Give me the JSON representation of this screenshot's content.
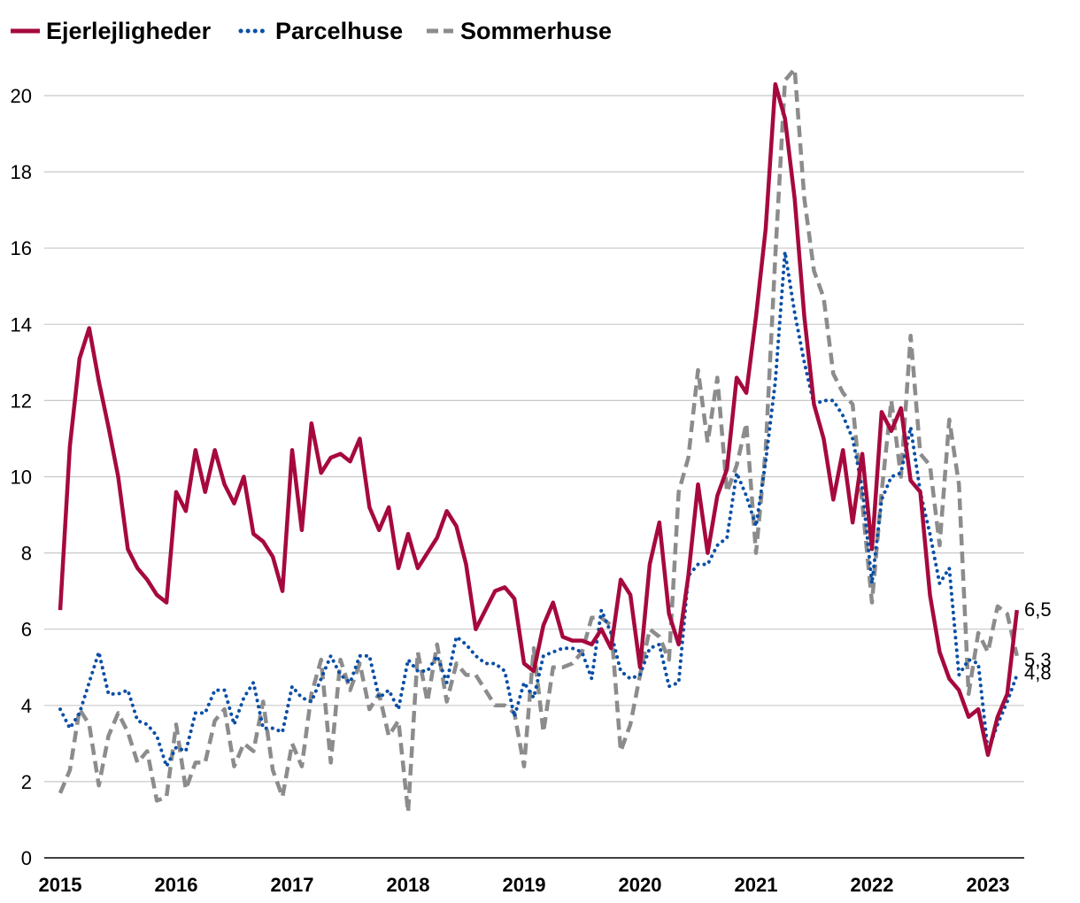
{
  "chart_data": {
    "type": "line",
    "title": "",
    "xlabel": "",
    "ylabel": "",
    "ylim": [
      0,
      20
    ],
    "yticks": [
      "0",
      "2",
      "4",
      "6",
      "8",
      "10",
      "12",
      "14",
      "16",
      "18",
      "20"
    ],
    "xticks": [
      "2015",
      "2016",
      "2017",
      "2018",
      "2019",
      "2020",
      "2021",
      "2022",
      "2023"
    ],
    "x_start": 2015,
    "months": 99,
    "legend": [
      "Ejerlejligheder",
      "Parcelhuse",
      "Sommerhuse"
    ],
    "grid": true,
    "series": [
      {
        "name": "Ejerlejligheder",
        "color": "#a6093d",
        "style": "solid",
        "end_label": "6,5",
        "values": [
          6.5,
          10.8,
          13.1,
          13.9,
          12.5,
          11.3,
          10.0,
          8.1,
          7.6,
          7.3,
          6.9,
          6.7,
          9.6,
          9.1,
          10.7,
          9.6,
          10.7,
          9.8,
          9.3,
          10.0,
          8.5,
          8.3,
          7.9,
          7.0,
          10.7,
          8.6,
          11.4,
          10.1,
          10.5,
          10.6,
          10.4,
          11.0,
          9.2,
          8.6,
          9.2,
          7.6,
          8.5,
          7.6,
          8.0,
          8.4,
          9.1,
          8.7,
          7.7,
          6.0,
          6.5,
          7.0,
          7.1,
          6.8,
          5.1,
          4.9,
          6.1,
          6.7,
          5.8,
          5.7,
          5.7,
          5.6,
          6.0,
          5.5,
          7.3,
          6.9,
          5.0,
          7.7,
          8.8,
          6.4,
          5.6,
          7.4,
          9.8,
          8.0,
          9.5,
          10.2,
          12.6,
          12.2,
          14.2,
          16.5,
          20.3,
          19.4,
          17.3,
          14.2,
          11.9,
          11.0,
          9.4,
          10.7,
          8.8,
          10.6,
          8.1,
          11.7,
          11.2,
          11.8,
          9.9,
          9.6,
          6.9,
          5.4,
          4.7,
          4.4,
          3.7,
          3.9,
          2.7,
          3.7,
          4.3,
          6.5
        ]
      },
      {
        "name": "Parcelhuse",
        "color": "#0a4fa6",
        "style": "dotted",
        "end_label": "4,8",
        "values": [
          3.9,
          3.4,
          3.8,
          4.6,
          5.4,
          4.3,
          4.3,
          4.4,
          3.6,
          3.5,
          3.2,
          2.4,
          2.9,
          2.8,
          3.8,
          3.8,
          4.4,
          4.4,
          3.5,
          4.2,
          4.6,
          3.4,
          3.4,
          3.3,
          4.5,
          4.2,
          4.1,
          4.7,
          5.3,
          4.8,
          4.6,
          5.3,
          5.3,
          4.2,
          4.4,
          3.9,
          5.2,
          4.9,
          4.9,
          5.3,
          4.6,
          5.8,
          5.6,
          5.3,
          5.1,
          5.1,
          4.9,
          3.7,
          4.6,
          4.2,
          5.3,
          5.4,
          5.5,
          5.5,
          5.4,
          4.7,
          6.5,
          5.9,
          4.9,
          4.7,
          4.8,
          5.5,
          5.6,
          4.5,
          4.6,
          7.4,
          7.7,
          7.7,
          8.2,
          8.4,
          10.1,
          9.5,
          8.7,
          10.4,
          12.5,
          15.9,
          14.3,
          13.0,
          11.9,
          12.0,
          12.0,
          11.6,
          11.0,
          9.7,
          7.2,
          9.4,
          10.0,
          10.1,
          11.3,
          9.6,
          8.5,
          7.2,
          7.6,
          4.8,
          5.2,
          5.1,
          2.8,
          3.5,
          4.1,
          4.8
        ]
      },
      {
        "name": "Sommerhuse",
        "color": "#8c8c8c",
        "style": "dashed",
        "end_label": "5,3",
        "values": [
          1.7,
          2.3,
          3.9,
          3.5,
          1.9,
          3.2,
          3.8,
          3.3,
          2.5,
          2.8,
          1.5,
          1.6,
          3.5,
          1.8,
          2.5,
          2.5,
          3.6,
          3.9,
          2.4,
          3.0,
          2.8,
          4.1,
          2.3,
          1.6,
          3.0,
          2.4,
          4.3,
          5.2,
          2.5,
          5.2,
          4.4,
          5.1,
          3.9,
          4.3,
          3.2,
          3.6,
          1.2,
          5.4,
          4.1,
          5.6,
          4.1,
          5.1,
          4.8,
          4.8,
          4.4,
          4.0,
          4.0,
          3.8,
          2.4,
          5.5,
          3.3,
          5.0,
          5.0,
          5.1,
          5.4,
          6.3,
          6.3,
          6.1,
          2.8,
          3.5,
          4.8,
          6.0,
          5.8,
          5.2,
          9.6,
          10.5,
          12.8,
          10.9,
          12.6,
          9.6,
          10.3,
          11.4,
          8.0,
          10.7,
          15.8,
          20.4,
          20.7,
          17.3,
          15.4,
          14.7,
          12.7,
          12.2,
          11.9,
          9.3,
          6.7,
          9.6,
          12.0,
          10.0,
          13.7,
          10.6,
          10.3,
          8.2,
          11.5,
          9.8,
          4.3,
          5.9,
          5.4,
          6.6,
          6.4,
          5.3
        ]
      }
    ]
  }
}
